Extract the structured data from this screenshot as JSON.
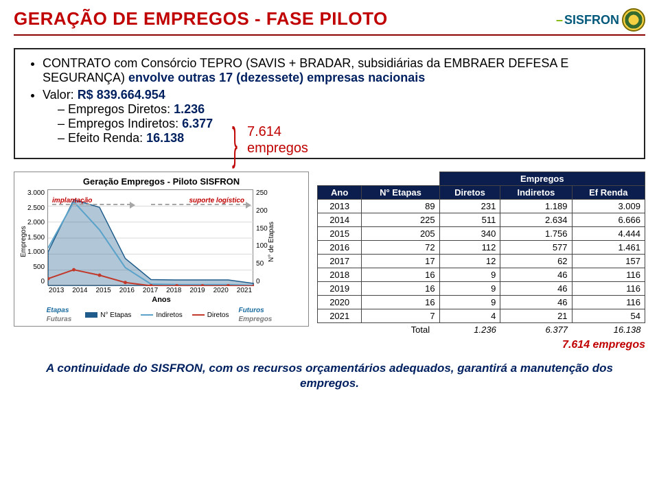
{
  "header": {
    "title": "GERAÇÃO DE EMPREGOS -  FASE PILOTO",
    "logo_text_dash": "–",
    "logo_text": "SISFRON"
  },
  "bullets": {
    "main1_prefix": "CONTRATO com Consórcio TEPRO (SAVIS + BRADAR, subsidiárias da EMBRAER DEFESA E SEGURANÇA) ",
    "main1_bold": "envolve outras 17 (dezessete) empresas nacionais",
    "main2_prefix": "Valor: ",
    "main2_bold": "R$ 839.664.954",
    "sub1_prefix": "Empregos Diretos: ",
    "sub1_bold": "1.236",
    "sub2_prefix": "Empregos Indiretos: ",
    "sub2_bold": "6.377",
    "sub3_prefix": "Efeito Renda: ",
    "sub3_bold": "16.138",
    "brace_value": "7.614",
    "brace_label": "empregos"
  },
  "chart": {
    "title": "Geração Empregos - Piloto SISFRON",
    "x_label": "Anos",
    "y_left_label": "Empregos",
    "y_right_label": "N° de Etapas",
    "x_ticks": [
      "2013",
      "2014",
      "2015",
      "2016",
      "2017",
      "2018",
      "2019",
      "2020",
      "2021"
    ],
    "y_left_ticks": [
      "3.000",
      "2.500",
      "2.000",
      "1.500",
      "1.000",
      "500",
      "0"
    ],
    "y_right_ticks": [
      "250",
      "200",
      "150",
      "100",
      "50",
      "0"
    ],
    "y_left_max": 3000,
    "y_right_max": 250,
    "annot_implantacao": "implantação",
    "annot_suporte": "suporte logístico",
    "series": {
      "n_etapas": {
        "label": "N° Etapas",
        "color": "#1f5c8b",
        "values": [
          89,
          225,
          205,
          72,
          17,
          16,
          16,
          16,
          7
        ]
      },
      "indiretos": {
        "label": "Indiretos",
        "color": "#5aa2c9",
        "values": [
          1189,
          2634,
          1756,
          577,
          62,
          46,
          46,
          46,
          21
        ]
      },
      "diretos": {
        "label": "Diretos",
        "color": "#c0392b",
        "values": [
          231,
          511,
          340,
          112,
          12,
          9,
          9,
          9,
          4
        ]
      }
    },
    "legend_left": {
      "top": "Etapas",
      "bot": "Futuras"
    },
    "legend_right": {
      "top": "Futuros",
      "bot": "Empregos"
    },
    "colors": {
      "grid": "#d9d9d9",
      "dashed_arrow": "#a6a6a6",
      "annot": "#c00000"
    }
  },
  "table": {
    "group_header": "Empregos",
    "columns": [
      "Ano",
      "N° Etapas",
      "Diretos",
      "Indiretos",
      "Ef Renda"
    ],
    "rows": [
      [
        "2013",
        "89",
        "231",
        "1.189",
        "3.009"
      ],
      [
        "2014",
        "225",
        "511",
        "2.634",
        "6.666"
      ],
      [
        "2015",
        "205",
        "340",
        "1.756",
        "4.444"
      ],
      [
        "2016",
        "72",
        "112",
        "577",
        "1.461"
      ],
      [
        "2017",
        "17",
        "12",
        "62",
        "157"
      ],
      [
        "2018",
        "16",
        "9",
        "46",
        "116"
      ],
      [
        "2019",
        "16",
        "9",
        "46",
        "116"
      ],
      [
        "2020",
        "16",
        "9",
        "46",
        "116"
      ],
      [
        "2021",
        "7",
        "4",
        "21",
        "54"
      ]
    ],
    "total_label": "Total",
    "totals": [
      "1.236",
      "6.377",
      "16.138"
    ],
    "grand_total": "7.614 empregos"
  },
  "footer": "A continuidade do SISFRON, com os recursos orçamentários adequados, garantirá a manutenção dos empregos."
}
